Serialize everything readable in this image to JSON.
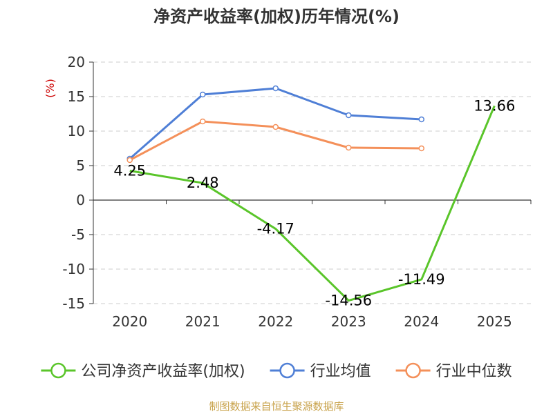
{
  "chart_data": {
    "type": "line",
    "title": "净资产收益率(加权)历年情况(%)",
    "ylabel": "(%)",
    "xlabel": "",
    "categories": [
      "2020",
      "2021",
      "2022",
      "2023",
      "2024",
      "2025"
    ],
    "ylim": [
      -15,
      20
    ],
    "yticks": [
      20,
      15,
      10,
      5,
      0,
      -5,
      -10,
      -15
    ],
    "grid": true,
    "legend_position": "bottom",
    "series": [
      {
        "name": "公司净资产收益率(加权)",
        "color": "#5ac52a",
        "values": [
          4.25,
          2.48,
          -4.17,
          -14.56,
          -11.49,
          13.66
        ],
        "labels": [
          "4.25",
          "2.48",
          "-4.17",
          "-14.56",
          "-11.49",
          "13.66"
        ],
        "show_markers": false,
        "show_labels": true
      },
      {
        "name": "行业均值",
        "color": "#4f7fd6",
        "values": [
          6.0,
          15.3,
          16.2,
          12.3,
          11.7,
          null
        ],
        "show_markers": true,
        "show_labels": false
      },
      {
        "name": "行业中位数",
        "color": "#f4905a",
        "values": [
          5.8,
          11.4,
          10.6,
          7.6,
          7.5,
          null
        ],
        "show_markers": true,
        "show_labels": false
      }
    ]
  },
  "source": "制图数据来自恒生聚源数据库",
  "colors": {
    "title": "#333333",
    "axis": "#333333",
    "grid": "#cccccc",
    "ylabel": "#cc0000",
    "source": "#c8a24a"
  }
}
